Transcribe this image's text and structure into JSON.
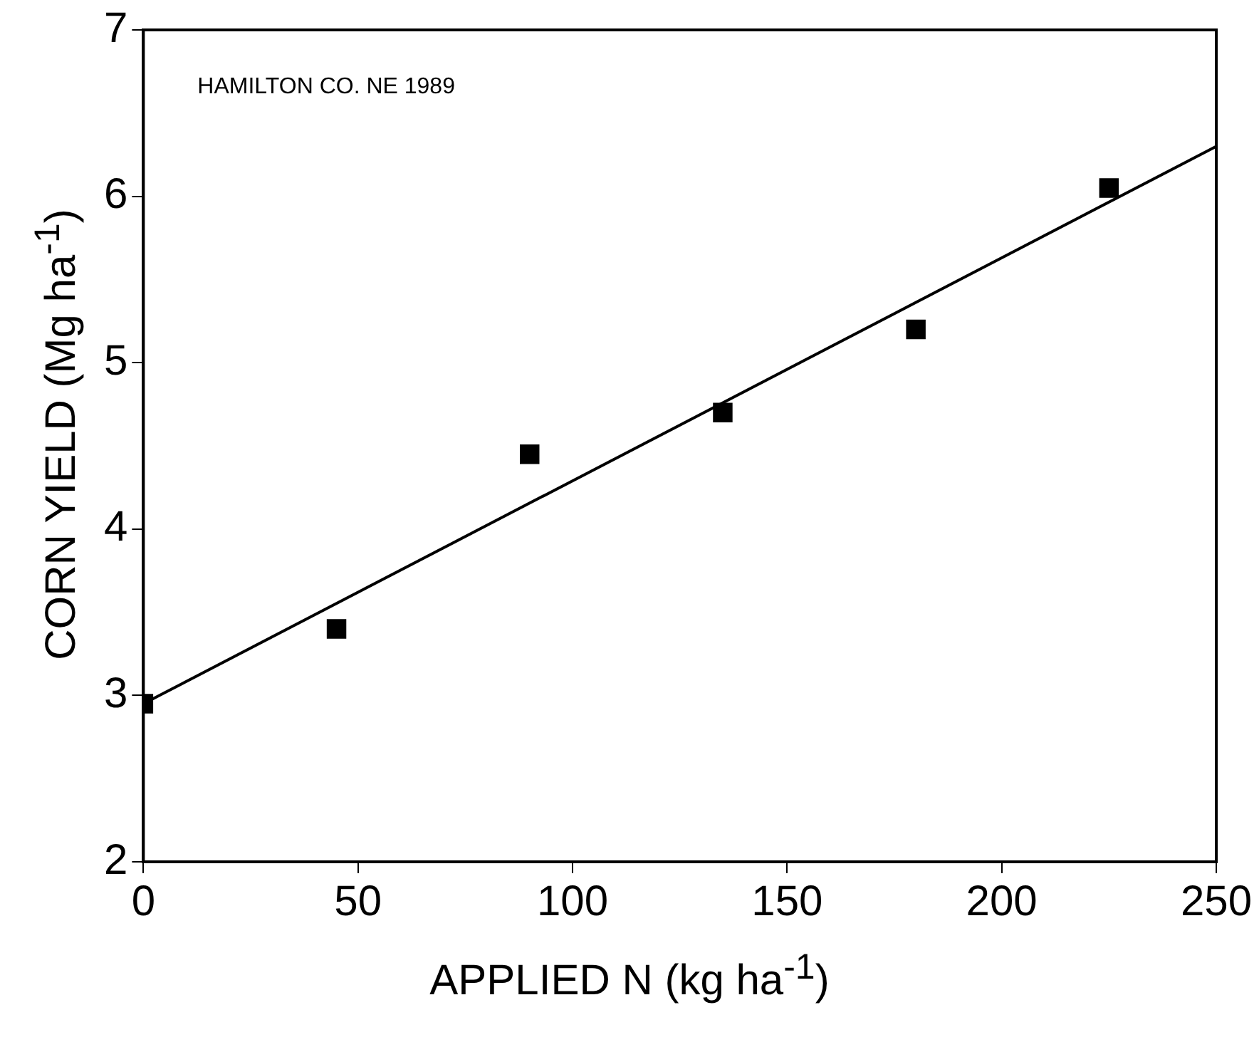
{
  "chart_data": {
    "type": "scatter",
    "xlabel": "APPLIED N (kg ha$^{-1}$)",
    "ylabel": "CORN YIELD (Mg ha$^{-1}$)",
    "annotations": [
      "HAMILTON CO. NE 1989"
    ],
    "x": [
      0,
      45,
      90,
      135,
      180,
      225
    ],
    "series": [
      {
        "type": "scatter",
        "color": "#000000",
        "values": [
          2.95,
          3.4,
          4.45,
          4.7,
          5.2,
          6.05
        ]
      },
      {
        "type": "line",
        "color": "#000000",
        "x": [
          0,
          250
        ],
        "values": [
          2.95,
          6.3
        ],
        "marker": "none"
      }
    ],
    "xlim": [
      0,
      250
    ],
    "xticks": [
      0,
      50,
      100,
      150,
      200,
      250
    ],
    "ylim": [
      2,
      7
    ],
    "yticks": [
      2,
      3,
      4,
      5,
      6,
      7
    ],
    "grid": false,
    "legend": false,
    "marker": "square",
    "line_style": "solid"
  }
}
